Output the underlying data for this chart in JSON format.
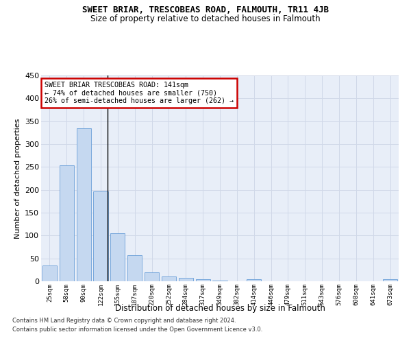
{
  "title": "SWEET BRIAR, TRESCOBEAS ROAD, FALMOUTH, TR11 4JB",
  "subtitle": "Size of property relative to detached houses in Falmouth",
  "xlabel": "Distribution of detached houses by size in Falmouth",
  "ylabel": "Number of detached properties",
  "footer1": "Contains HM Land Registry data © Crown copyright and database right 2024.",
  "footer2": "Contains public sector information licensed under the Open Government Licence v3.0.",
  "bar_color": "#c5d8f0",
  "bar_edge_color": "#6a9fd8",
  "property_line_color": "#000000",
  "annotation_box_color": "#cc0000",
  "categories": [
    "25sqm",
    "58sqm",
    "90sqm",
    "122sqm",
    "155sqm",
    "187sqm",
    "220sqm",
    "252sqm",
    "284sqm",
    "317sqm",
    "349sqm",
    "382sqm",
    "414sqm",
    "446sqm",
    "479sqm",
    "511sqm",
    "543sqm",
    "576sqm",
    "608sqm",
    "641sqm",
    "673sqm"
  ],
  "values": [
    35,
    254,
    335,
    197,
    105,
    57,
    19,
    11,
    7,
    5,
    2,
    0,
    5,
    0,
    0,
    0,
    0,
    0,
    0,
    0,
    4
  ],
  "property_line_x": 3.4,
  "annotation_text_line1": "SWEET BRIAR TRESCOBEAS ROAD: 141sqm",
  "annotation_text_line2": "← 74% of detached houses are smaller (750)",
  "annotation_text_line3": "26% of semi-detached houses are larger (262) →",
  "ylim": [
    0,
    450
  ],
  "yticks": [
    0,
    50,
    100,
    150,
    200,
    250,
    300,
    350,
    400,
    450
  ],
  "grid_color": "#d0d8e8",
  "bg_color": "#e8eef8"
}
